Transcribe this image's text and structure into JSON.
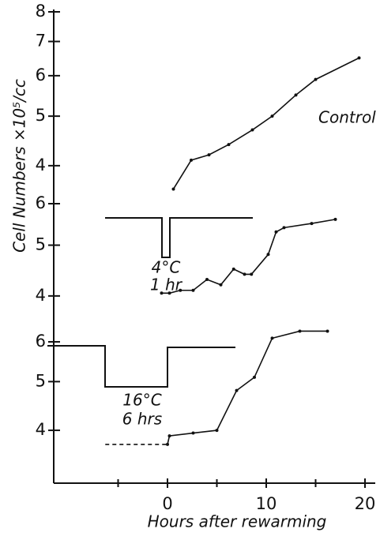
{
  "chart_data": [
    {
      "type": "line",
      "ylabel": "Cell Numbers ×10⁵/cc",
      "log_y": true,
      "ylim": [
        3.53,
        8
      ],
      "yticks": [
        4,
        5,
        6,
        7,
        8
      ],
      "annotations": [
        "Control"
      ],
      "series": [
        {
          "color": "#111111",
          "dashed": false,
          "x": [
            0.6,
            2.4,
            4.2,
            6.2,
            8.6,
            10.6,
            13,
            15,
            19.4
          ],
          "values": [
            3.6,
            4.1,
            4.2,
            4.4,
            4.7,
            5.0,
            5.5,
            5.9,
            6.5
          ]
        }
      ]
    },
    {
      "type": "line",
      "log_y": true,
      "ylim": [
        3.73,
        6
      ],
      "yticks": [
        4,
        5,
        6
      ],
      "annotations": [
        "4°C",
        "1 hr"
      ],
      "series": [
        {
          "color": "#111111",
          "dashed": false,
          "x": [
            -0.6,
            0.2,
            1.3,
            2.6,
            4,
            5.4,
            6.7,
            7.8,
            8.5,
            10.2,
            11,
            11.8,
            14.6,
            17
          ],
          "values": [
            4.05,
            4.05,
            4.1,
            4.1,
            4.3,
            4.2,
            4.5,
            4.4,
            4.4,
            4.8,
            5.3,
            5.4,
            5.5,
            5.6
          ]
        }
      ]
    },
    {
      "type": "line",
      "log_y": true,
      "ylim": [
        3.14,
        6.76
      ],
      "yticks": [
        4,
        5,
        6
      ],
      "annotations": [
        "16°C",
        "6 hrs"
      ],
      "xlabel": "Hours after rewarming",
      "xlim": [
        -11.52,
        21.04
      ],
      "xticks": [
        0,
        10,
        20
      ],
      "xminor_ticks": [
        -5,
        5,
        15
      ],
      "series": [
        {
          "color": "#111111",
          "dashed": true,
          "x": [
            -6.3,
            0
          ],
          "values": [
            3.75,
            3.75
          ]
        },
        {
          "color": "#111111",
          "dashed": false,
          "x": [
            0,
            0.2,
            2.6,
            5,
            7,
            8.8,
            10.6,
            13.4,
            16.2
          ],
          "values": [
            3.75,
            3.9,
            3.95,
            4.0,
            4.8,
            5.1,
            6.1,
            6.3,
            6.3
          ]
        }
      ]
    }
  ]
}
